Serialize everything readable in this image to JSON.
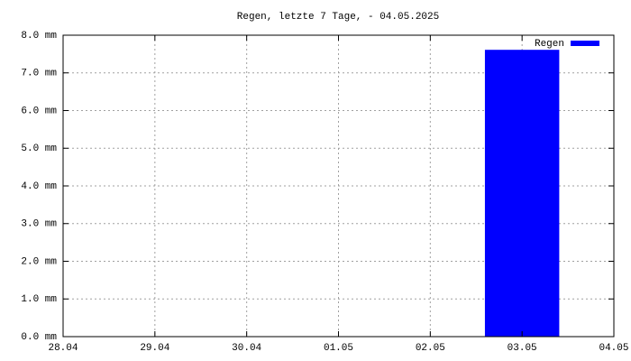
{
  "chart_data": {
    "type": "bar",
    "title": "Regen, letzte 7 Tage,  - 04.05.2025",
    "categories": [
      "28.04",
      "29.04",
      "30.04",
      "01.05",
      "02.05",
      "03.05",
      "04.05"
    ],
    "series": [
      {
        "name": "Regen",
        "color": "#0000ff",
        "values": [
          0,
          0,
          0,
          0,
          0,
          7.6,
          null
        ]
      }
    ],
    "ylim": [
      0,
      8
    ],
    "yticks": [
      {
        "value": 0,
        "label": "0.0 mm"
      },
      {
        "value": 1,
        "label": "1.0 mm"
      },
      {
        "value": 2,
        "label": "2.0 mm"
      },
      {
        "value": 3,
        "label": "3.0 mm"
      },
      {
        "value": 4,
        "label": "4.0 mm"
      },
      {
        "value": 5,
        "label": "5.0 mm"
      },
      {
        "value": 6,
        "label": "6.0 mm"
      },
      {
        "value": 7,
        "label": "7.0 mm"
      },
      {
        "value": 8,
        "label": "8.0 mm"
      }
    ],
    "grid": true,
    "legend": "top-right"
  }
}
